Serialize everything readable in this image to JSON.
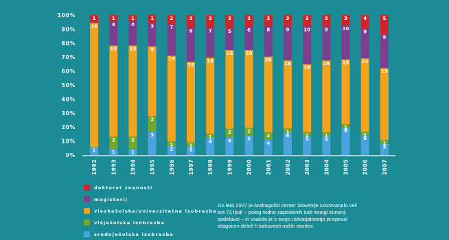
{
  "chart_data": {
    "type": "bar",
    "stacked": true,
    "percent": true,
    "categories": [
      "1992",
      "1993",
      "1994",
      "1995",
      "1996",
      "1997",
      "1998",
      "1999",
      "2000",
      "2001",
      "2002",
      "2003",
      "2004",
      "2005",
      "2006",
      "2007"
    ],
    "series": [
      {
        "name": "srednješolska izobrazba",
        "color": "#4aa3df",
        "values": [
          1,
          1,
          1,
          3,
          2,
          2,
          4,
          4,
          5,
          4,
          6,
          5,
          5,
          8,
          6,
          3
        ]
      },
      {
        "name": "višješolska izobrazba",
        "color": "#6fa82c",
        "values": [
          0,
          2,
          2,
          2,
          1,
          1,
          1,
          2,
          2,
          2,
          1,
          1,
          1,
          1,
          1,
          1
        ]
      },
      {
        "name": "visokošolska/univerzitetna izobrazba",
        "color": "#f2a21c",
        "values": [
          16,
          15,
          15,
          9,
          19,
          19,
          18,
          18,
          20,
          20,
          18,
          18,
          19,
          19,
          22,
          19
        ]
      },
      {
        "name": "magisterij",
        "color": "#7b3f8f",
        "values": [
          0,
          4,
          4,
          3,
          7,
          8,
          7,
          5,
          6,
          8,
          9,
          10,
          9,
          10,
          9,
          9
        ]
      },
      {
        "name": "doktorat znanosti",
        "color": "#d2232a",
        "values": [
          1,
          1,
          1,
          1,
          2,
          3,
          3,
          3,
          3,
          3,
          3,
          3,
          3,
          3,
          4,
          5
        ]
      }
    ],
    "yticks": [
      "100%",
      "90%",
      "80%",
      "70%",
      "60%",
      "50%",
      "40%",
      "30%",
      "20%",
      "10%",
      "0%"
    ],
    "ylim": [
      0,
      100
    ],
    "legend_position": "bottom-left",
    "grid": false
  },
  "note": {
    "lines": [
      "Do leta 2007 je Andragoški center Slovenije soustvarjalo več",
      "kot 72 ljudi – poleg redno zaposlenih tudi mnogi zunanji",
      "sodelavci – in vsakdo je s svojo ustvarjalnostjo prispeval",
      "dragocen delež h kakovosti naših storitev."
    ]
  }
}
